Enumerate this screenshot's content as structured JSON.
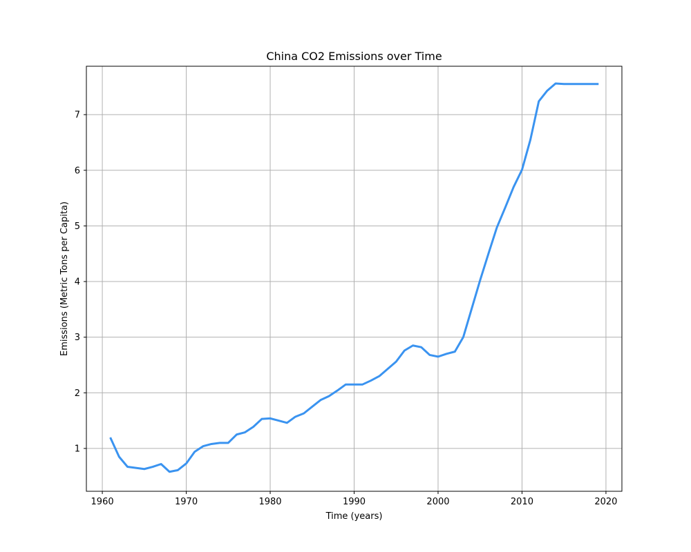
{
  "chart_data": {
    "type": "line",
    "title": "China CO2 Emissions over Time",
    "xlabel": "Time (years)",
    "ylabel": "Emissions (Metric Tons per Capita)",
    "xlim": [
      1958.1,
      2021.9
    ],
    "ylim": [
      0.23,
      7.87
    ],
    "xticks": [
      1960,
      1970,
      1980,
      1990,
      2000,
      2010,
      2020
    ],
    "yticks": [
      1,
      2,
      3,
      4,
      5,
      6,
      7
    ],
    "grid": true,
    "series": [
      {
        "color": "#3a93f0",
        "x": [
          1961,
          1962,
          1963,
          1964,
          1965,
          1966,
          1967,
          1968,
          1969,
          1970,
          1971,
          1972,
          1973,
          1974,
          1975,
          1976,
          1977,
          1978,
          1979,
          1980,
          1981,
          1982,
          1983,
          1984,
          1985,
          1986,
          1987,
          1988,
          1989,
          1990,
          1991,
          1992,
          1993,
          1994,
          1995,
          1996,
          1997,
          1998,
          1999,
          2000,
          2001,
          2002,
          2003,
          2004,
          2005,
          2006,
          2007,
          2008,
          2009,
          2010,
          2011,
          2012,
          2013,
          2014,
          2015,
          2016,
          2017,
          2018,
          2019
        ],
        "y": [
          1.18,
          0.85,
          0.67,
          0.65,
          0.63,
          0.67,
          0.72,
          0.58,
          0.61,
          0.73,
          0.94,
          1.04,
          1.08,
          1.1,
          1.1,
          1.25,
          1.29,
          1.39,
          1.53,
          1.54,
          1.5,
          1.46,
          1.57,
          1.63,
          1.75,
          1.87,
          1.94,
          2.04,
          2.15,
          2.15,
          2.15,
          2.22,
          2.3,
          2.43,
          2.56,
          2.76,
          2.85,
          2.82,
          2.68,
          2.65,
          2.7,
          2.74,
          3.0,
          3.51,
          4.02,
          4.5,
          4.97,
          5.33,
          5.7,
          6.01,
          6.55,
          7.24,
          7.43,
          7.56,
          7.55,
          7.55,
          7.55,
          7.55,
          7.55
        ]
      }
    ]
  }
}
